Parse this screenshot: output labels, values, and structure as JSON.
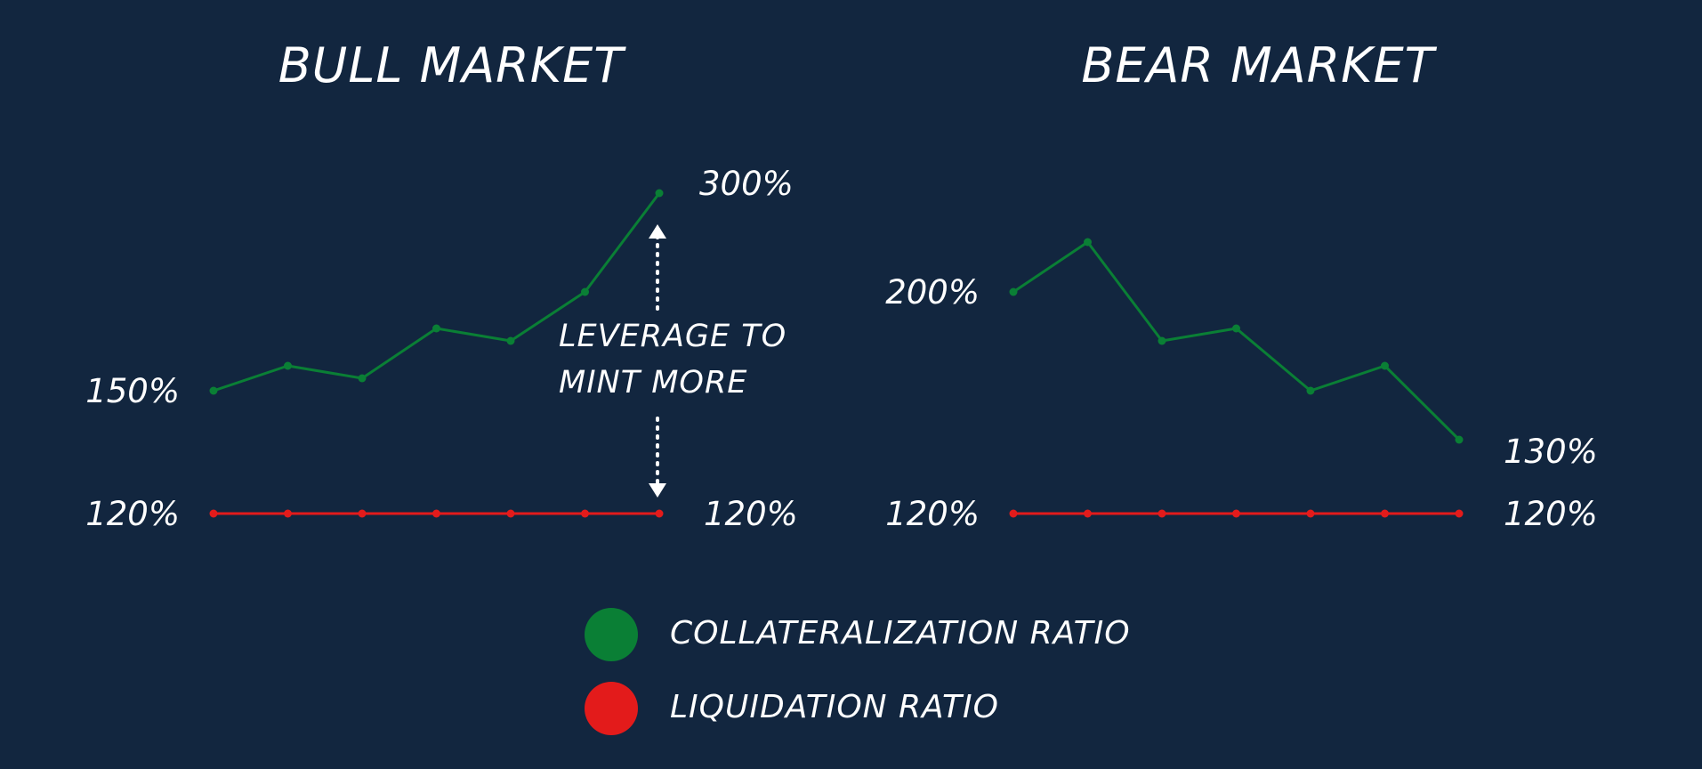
{
  "colors": {
    "background": "#12263f",
    "collateralization": "#0a7f35",
    "liquidation": "#e31b1b",
    "text": "#ffffff"
  },
  "annotation": {
    "line1": "LEVERAGE TO",
    "line2": "MINT MORE"
  },
  "legend": {
    "items": [
      {
        "label": "COLLATERALIZATION RATIO",
        "color": "#0a7f35"
      },
      {
        "label": "LIQUIDATION RATIO",
        "color": "#e31b1b"
      }
    ]
  },
  "chart_data": [
    {
      "type": "line",
      "title": "BULL MARKET",
      "x": [
        1,
        2,
        3,
        4,
        5,
        6,
        7
      ],
      "series": [
        {
          "name": "COLLATERALIZATION RATIO",
          "values": [
            150,
            160,
            155,
            175,
            170,
            190,
            300
          ],
          "color": "#0a7f35"
        },
        {
          "name": "LIQUIDATION RATIO",
          "values": [
            120,
            120,
            120,
            120,
            120,
            120,
            120
          ],
          "color": "#e31b1b"
        }
      ],
      "labels": {
        "collateral_start": "150%",
        "collateral_end": "300%",
        "liquidation_start": "120%",
        "liquidation_end": "120%"
      },
      "grid": false
    },
    {
      "type": "line",
      "title": "BEAR MARKET",
      "x": [
        1,
        2,
        3,
        4,
        5,
        6,
        7
      ],
      "series": [
        {
          "name": "COLLATERALIZATION RATIO",
          "values": [
            200,
            220,
            180,
            185,
            160,
            170,
            130
          ],
          "color": "#0a7f35"
        },
        {
          "name": "LIQUIDATION RATIO",
          "values": [
            120,
            120,
            120,
            120,
            120,
            120,
            120
          ],
          "color": "#e31b1b"
        }
      ],
      "labels": {
        "collateral_start": "200%",
        "collateral_end": "130%",
        "liquidation_start": "120%",
        "liquidation_end": "120%"
      },
      "grid": false
    }
  ]
}
